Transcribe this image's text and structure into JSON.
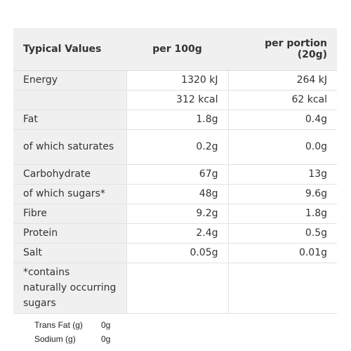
{
  "table": {
    "headers": {
      "name": "Typical Values",
      "per_100g": "per 100g",
      "per_portion": "per portion (20g)"
    },
    "rows": [
      {
        "name": "Energy",
        "per_100g": "1320 kJ",
        "per_portion": "264 kJ"
      },
      {
        "name": "",
        "per_100g": "312 kcal",
        "per_portion": "62 kcal"
      },
      {
        "name": "Fat",
        "per_100g": "1.8g",
        "per_portion": "0.4g"
      },
      {
        "name": "of which saturates",
        "per_100g": "0.2g",
        "per_portion": "0.0g"
      },
      {
        "name": "Carbohydrate",
        "per_100g": "67g",
        "per_portion": "13g"
      },
      {
        "name": "of which sugars*",
        "per_100g": "48g",
        "per_portion": "9.6g"
      },
      {
        "name": "Fibre",
        "per_100g": "9.2g",
        "per_portion": "1.8g"
      },
      {
        "name": "Protein",
        "per_100g": "2.4g",
        "per_portion": "0.5g"
      },
      {
        "name": "Salt",
        "per_100g": "0.05g",
        "per_portion": "0.01g"
      },
      {
        "name": "*contains naturally occurring sugars",
        "per_100g": "",
        "per_portion": ""
      }
    ]
  },
  "extra": [
    {
      "name": "Trans Fat (g)",
      "value": "0g"
    },
    {
      "name": "Sodium (g)",
      "value": "0g"
    }
  ]
}
